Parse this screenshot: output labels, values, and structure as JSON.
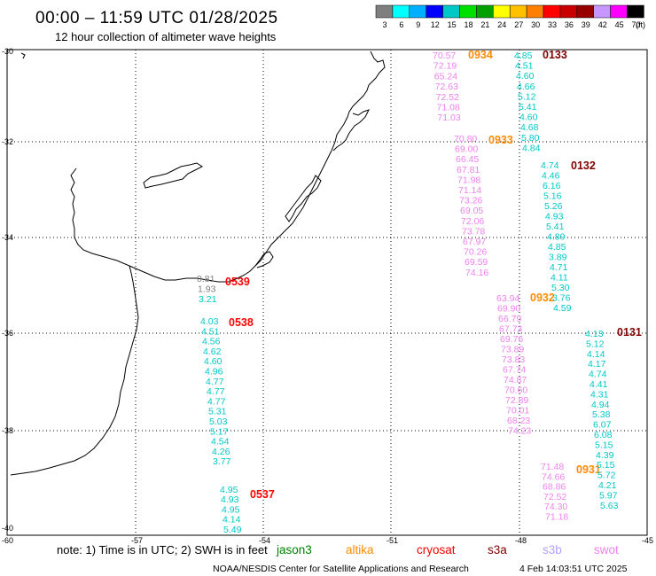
{
  "title": "00:00 – 11:59 UTC 01/28/2025",
  "subtitle": "12 hour collection of altimeter wave heights",
  "scale": {
    "labels": [
      "3",
      "6",
      "9",
      "12",
      "15",
      "18",
      "21",
      "24",
      "27",
      "30",
      "33",
      "36",
      "39",
      "42",
      "45",
      "70"
    ],
    "unit": "(ft)",
    "colors": [
      "#7f7f7f",
      "#00ffff",
      "#00b0ff",
      "#0000ff",
      "#00c8c8",
      "#00e000",
      "#00a000",
      "#ffff00",
      "#ffc000",
      "#ff8000",
      "#ff0000",
      "#c80000",
      "#960000",
      "#c896ff",
      "#ff00ff",
      "#000000"
    ]
  },
  "axes": {
    "lon_ticks": [
      "-57",
      "-54",
      "-51",
      "-48",
      "-45"
    ],
    "lat_ticks": [
      "-30",
      "-32",
      "-34",
      "-36",
      "-38",
      "-40"
    ],
    "corner_label": "-60"
  },
  "tracks": [
    {
      "id": "0539",
      "time_color": "#ff0000",
      "time_label": "0539",
      "label_pos": "lower",
      "values": [
        {
          "v": "0.81",
          "c": "#808080"
        },
        {
          "v": "1.93",
          "c": "#808080"
        },
        {
          "v": "3.21",
          "c": "#00c8c8"
        }
      ]
    },
    {
      "id": "0538",
      "time_color": "#ff0000",
      "time_label": "0538",
      "values": [
        {
          "v": "4.03",
          "c": "#00c8c8"
        },
        {
          "v": "4.51",
          "c": "#00c8c8"
        },
        {
          "v": "4.56",
          "c": "#00c8c8"
        },
        {
          "v": "4.62",
          "c": "#00c8c8"
        },
        {
          "v": "4.60",
          "c": "#00c8c8"
        },
        {
          "v": "4.96",
          "c": "#00c8c8"
        },
        {
          "v": "4.77",
          "c": "#00c8c8"
        },
        {
          "v": "4.77",
          "c": "#00c8c8"
        },
        {
          "v": "4.77",
          "c": "#00c8c8"
        },
        {
          "v": "5.31",
          "c": "#00c8c8"
        },
        {
          "v": "5.03",
          "c": "#00c8c8"
        },
        {
          "v": "5.17",
          "c": "#00c8c8"
        },
        {
          "v": "4.54",
          "c": "#00c8c8"
        },
        {
          "v": "4.26",
          "c": "#00c8c8"
        },
        {
          "v": "3.77",
          "c": "#00c8c8"
        }
      ]
    },
    {
      "id": "0537",
      "time_color": "#ff0000",
      "time_label": "0537",
      "values": [
        {
          "v": "4.95",
          "c": "#00c8c8"
        },
        {
          "v": "4.93",
          "c": "#00c8c8"
        },
        {
          "v": "4.95",
          "c": "#00c8c8"
        },
        {
          "v": "4.14",
          "c": "#00c8c8"
        },
        {
          "v": "5.49",
          "c": "#00c8c8"
        }
      ]
    },
    {
      "id": "0934",
      "time_color": "#ff8c00",
      "time_label": "0934",
      "values": [
        {
          "v": "70.57",
          "c": "#ee82ee"
        },
        {
          "v": "72.19",
          "c": "#ee82ee"
        },
        {
          "v": "65.24",
          "c": "#ee82ee"
        },
        {
          "v": "72.63",
          "c": "#ee82ee"
        },
        {
          "v": "72.52",
          "c": "#ee82ee"
        },
        {
          "v": "71.08",
          "c": "#ee82ee"
        },
        {
          "v": "71.03",
          "c": "#ee82ee"
        }
      ]
    },
    {
      "id": "0933",
      "time_color": "#ff8c00",
      "time_label": "0933",
      "values": [
        {
          "v": "70.80",
          "c": "#ee82ee"
        },
        {
          "v": "69.00",
          "c": "#ee82ee"
        },
        {
          "v": "66.45",
          "c": "#ee82ee"
        },
        {
          "v": "67.81",
          "c": "#ee82ee"
        },
        {
          "v": "71.98",
          "c": "#ee82ee"
        },
        {
          "v": "71.14",
          "c": "#ee82ee"
        },
        {
          "v": "73.26",
          "c": "#ee82ee"
        },
        {
          "v": "69.05",
          "c": "#ee82ee"
        },
        {
          "v": "72.06",
          "c": "#ee82ee"
        },
        {
          "v": "73.78",
          "c": "#ee82ee"
        },
        {
          "v": "67.97",
          "c": "#ee82ee"
        },
        {
          "v": "70.26",
          "c": "#ee82ee"
        },
        {
          "v": "69.59",
          "c": "#ee82ee"
        },
        {
          "v": "74.16",
          "c": "#ee82ee"
        }
      ]
    },
    {
      "id": "0932",
      "time_color": "#ff8c00",
      "time_label": "0932",
      "values": [
        {
          "v": "63.94",
          "c": "#ee82ee"
        },
        {
          "v": "69.90",
          "c": "#ee82ee"
        },
        {
          "v": "66.79",
          "c": "#ee82ee"
        },
        {
          "v": "67.73",
          "c": "#ee82ee"
        },
        {
          "v": "69.76",
          "c": "#ee82ee"
        },
        {
          "v": "73.89",
          "c": "#ee82ee"
        },
        {
          "v": "73.83",
          "c": "#ee82ee"
        },
        {
          "v": "67.74",
          "c": "#ee82ee"
        },
        {
          "v": "74.87",
          "c": "#ee82ee"
        },
        {
          "v": "70.60",
          "c": "#ee82ee"
        },
        {
          "v": "72.89",
          "c": "#ee82ee"
        },
        {
          "v": "70.01",
          "c": "#ee82ee"
        },
        {
          "v": "68.23",
          "c": "#ee82ee"
        },
        {
          "v": "74.23",
          "c": "#ee82ee"
        }
      ]
    },
    {
      "id": "0931",
      "time_color": "#ff8c00",
      "time_label": "0931",
      "values": [
        {
          "v": "71.48",
          "c": "#ee82ee"
        },
        {
          "v": "74.66",
          "c": "#ee82ee"
        },
        {
          "v": "68.86",
          "c": "#ee82ee"
        },
        {
          "v": "72.52",
          "c": "#ee82ee"
        },
        {
          "v": "74.30",
          "c": "#ee82ee"
        },
        {
          "v": "71.18",
          "c": "#ee82ee"
        }
      ]
    },
    {
      "id": "0133",
      "time_color": "#800000",
      "time_label": "0133",
      "values": [
        {
          "v": "4.85",
          "c": "#00c8c8"
        },
        {
          "v": "4.51",
          "c": "#00c8c8"
        },
        {
          "v": "4.60",
          "c": "#00c8c8"
        },
        {
          "v": "4.66",
          "c": "#00c8c8"
        },
        {
          "v": "5.12",
          "c": "#00c8c8"
        },
        {
          "v": "5.41",
          "c": "#00c8c8"
        },
        {
          "v": "4.60",
          "c": "#00c8c8"
        },
        {
          "v": "4.68",
          "c": "#00c8c8"
        },
        {
          "v": "5.80",
          "c": "#00c8c8"
        },
        {
          "v": "4.84",
          "c": "#00c8c8"
        }
      ]
    },
    {
      "id": "0132",
      "time_color": "#800000",
      "time_label": "0132",
      "values": [
        {
          "v": "4.74",
          "c": "#00c8c8"
        },
        {
          "v": "4.46",
          "c": "#00c8c8"
        },
        {
          "v": "6.16",
          "c": "#00c8c8"
        },
        {
          "v": "5.16",
          "c": "#00c8c8"
        },
        {
          "v": "5.26",
          "c": "#00c8c8"
        },
        {
          "v": "4.93",
          "c": "#00c8c8"
        },
        {
          "v": "5.41",
          "c": "#00c8c8"
        },
        {
          "v": "4.89",
          "c": "#00c8c8"
        },
        {
          "v": "4.85",
          "c": "#00c8c8"
        },
        {
          "v": "3.89",
          "c": "#00c8c8"
        },
        {
          "v": "4.71",
          "c": "#00c8c8"
        },
        {
          "v": "4.11",
          "c": "#00c8c8"
        },
        {
          "v": "5.30",
          "c": "#00c8c8"
        },
        {
          "v": "3.76",
          "c": "#00c8c8"
        },
        {
          "v": "4.59",
          "c": "#00c8c8"
        }
      ]
    },
    {
      "id": "0131",
      "time_color": "#800000",
      "time_label": "0131",
      "values": [
        {
          "v": "4.13",
          "c": "#00c8c8"
        },
        {
          "v": "5.12",
          "c": "#00c8c8"
        },
        {
          "v": "4.14",
          "c": "#00c8c8"
        },
        {
          "v": "4.17",
          "c": "#00c8c8"
        },
        {
          "v": "4.74",
          "c": "#00c8c8"
        },
        {
          "v": "4.41",
          "c": "#00c8c8"
        },
        {
          "v": "4.31",
          "c": "#00c8c8"
        },
        {
          "v": "4.94",
          "c": "#00c8c8"
        },
        {
          "v": "5.38",
          "c": "#00c8c8"
        },
        {
          "v": "6.07",
          "c": "#00c8c8"
        },
        {
          "v": "6.08",
          "c": "#00c8c8"
        },
        {
          "v": "5.15",
          "c": "#00c8c8"
        },
        {
          "v": "4.39",
          "c": "#00c8c8"
        },
        {
          "v": "5.15",
          "c": "#00c8c8"
        },
        {
          "v": "5.72",
          "c": "#00c8c8"
        },
        {
          "v": "4.21",
          "c": "#00c8c8"
        },
        {
          "v": "5.97",
          "c": "#00c8c8"
        },
        {
          "v": "5.63",
          "c": "#00c8c8"
        }
      ]
    }
  ],
  "footer": {
    "note": "note:  1) Time is in UTC;  2) SWH is in feet",
    "missions": [
      {
        "label": "jason3",
        "color": "#008000"
      },
      {
        "label": "altika",
        "color": "#ff8c00"
      },
      {
        "label": "cryosat",
        "color": "#ff0000"
      },
      {
        "label": "s3a",
        "color": "#800000"
      },
      {
        "label": "s3b",
        "color": "#b0a0ff"
      },
      {
        "label": "swot",
        "color": "#ee82ee"
      }
    ],
    "credit": "NOAA/NESDIS Center for Satellite Applications and Research",
    "timestamp": "4 Feb 14:03:51 UTC 2025"
  }
}
